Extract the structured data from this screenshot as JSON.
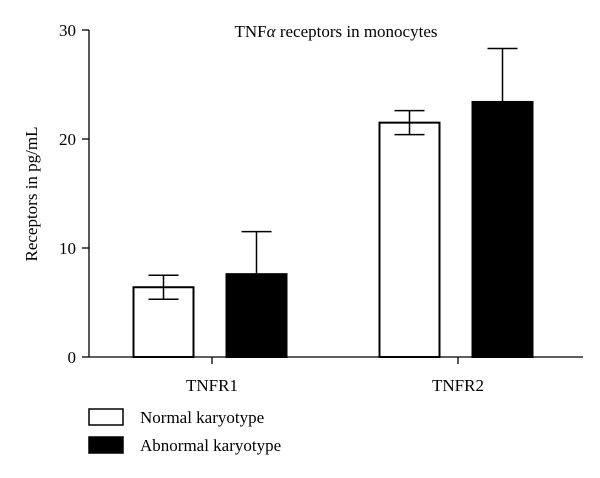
{
  "chart_data": {
    "type": "bar",
    "title_prefix": "TNF",
    "title_alpha": "α",
    "title_suffix": " receptors in monocytes",
    "xlabel": "",
    "ylabel": "Receptors in pg/mL",
    "categories": [
      "TNFR1",
      "TNFR2"
    ],
    "ylim": [
      0,
      30
    ],
    "yticks": [
      0,
      10,
      20,
      30
    ],
    "series": [
      {
        "name": "Normal karyotype",
        "values": [
          6.4,
          21.5
        ],
        "errors": [
          1.1,
          1.1
        ],
        "fill": "#ffffff",
        "stroke": "#000000"
      },
      {
        "name": "Abnormal karyotype",
        "values": [
          7.6,
          23.4
        ],
        "errors": [
          3.9,
          4.9
        ],
        "fill": "#000000",
        "stroke": "#000000"
      }
    ],
    "grid": false,
    "legend": "bottom-left"
  }
}
